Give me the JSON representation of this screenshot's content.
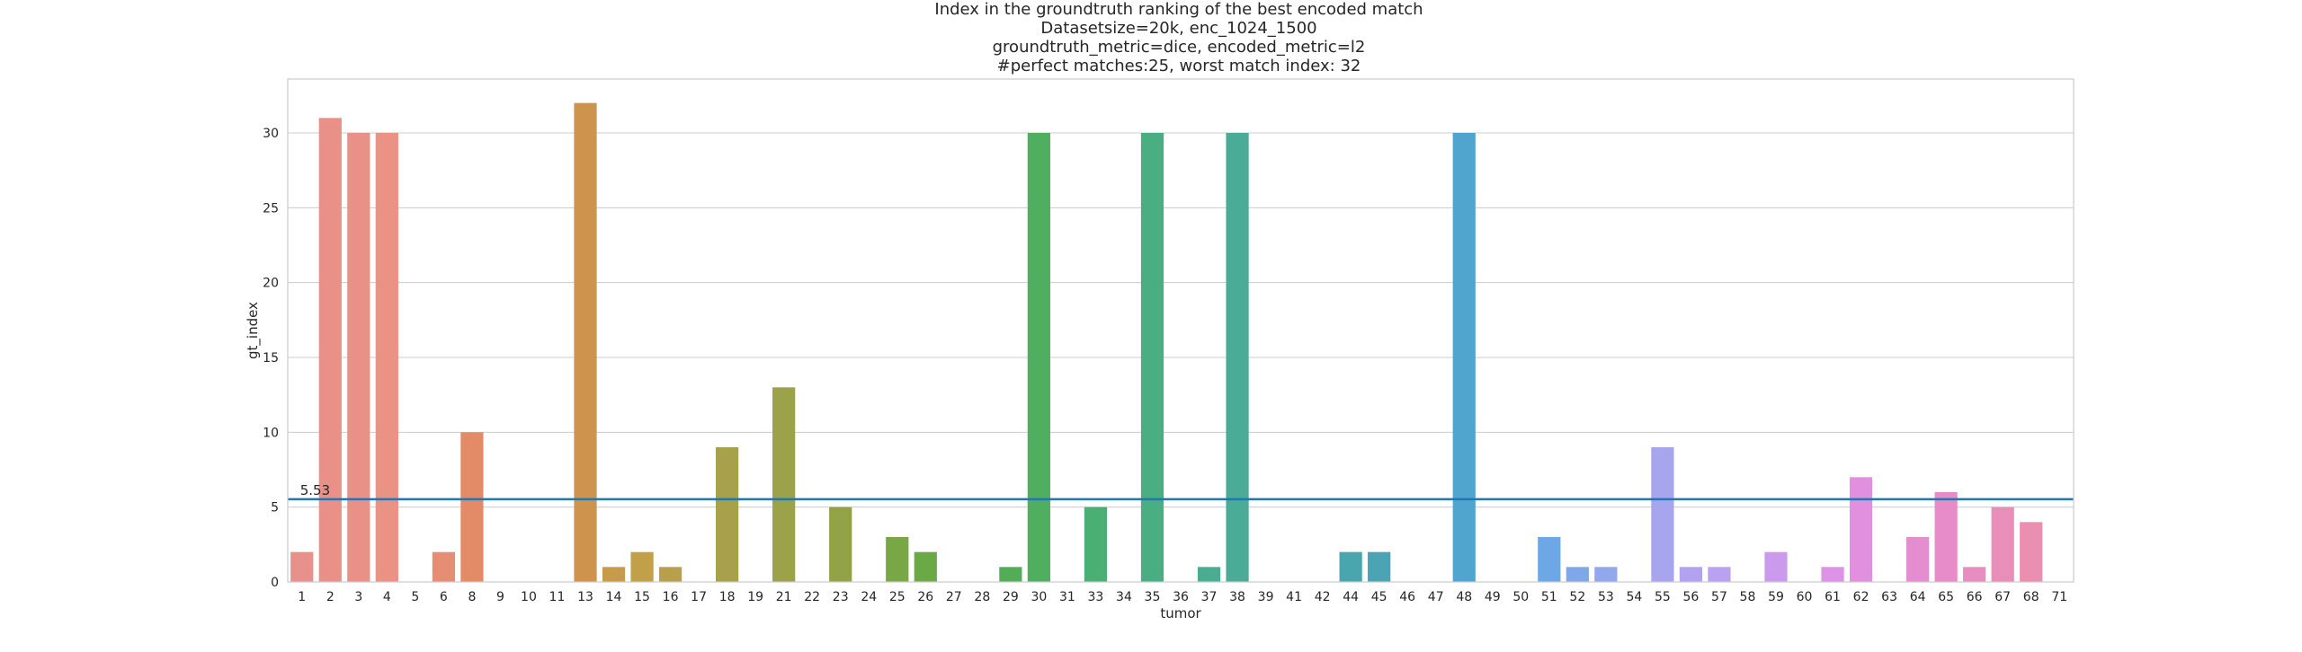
{
  "chart_data": {
    "type": "bar",
    "title_lines": [
      "Index in the groundtruth ranking of the best encoded match",
      "Datasetsize=20k, enc_1024_1500",
      "groundtruth_metric=dice, encoded_metric=l2",
      "#perfect matches:25, worst match index: 32"
    ],
    "xlabel": "tumor",
    "ylabel": "gt_index",
    "ylim": [
      0,
      33.6
    ],
    "yticks": [
      0,
      5,
      10,
      15,
      20,
      25,
      30
    ],
    "grid": "horizontal",
    "categories": [
      "1",
      "2",
      "3",
      "4",
      "5",
      "6",
      "8",
      "9",
      "10",
      "11",
      "13",
      "14",
      "15",
      "16",
      "17",
      "18",
      "19",
      "21",
      "22",
      "23",
      "24",
      "25",
      "26",
      "27",
      "28",
      "29",
      "30",
      "31",
      "33",
      "34",
      "35",
      "36",
      "37",
      "38",
      "39",
      "41",
      "42",
      "44",
      "45",
      "46",
      "47",
      "48",
      "49",
      "50",
      "51",
      "52",
      "53",
      "54",
      "55",
      "56",
      "57",
      "58",
      "59",
      "60",
      "61",
      "62",
      "63",
      "64",
      "65",
      "66",
      "67",
      "68",
      "71"
    ],
    "values": [
      2,
      31,
      30,
      30,
      0,
      2,
      10,
      0,
      0,
      0,
      32,
      1,
      2,
      1,
      0,
      9,
      0,
      13,
      0,
      5,
      0,
      3,
      2,
      0,
      0,
      1,
      30,
      0,
      5,
      0,
      30,
      0,
      1,
      30,
      0,
      0,
      0,
      2,
      2,
      0,
      0,
      30,
      0,
      0,
      3,
      1,
      1,
      0,
      9,
      1,
      1,
      0,
      2,
      0,
      1,
      7,
      0,
      3,
      6,
      1,
      5,
      4,
      0
    ],
    "mean_line": {
      "value": 5.53,
      "label": "5.53",
      "color": "#1f77b4"
    },
    "palette": [
      "#e8908c",
      "#ea9280",
      "#dd8452",
      "#c4a049",
      "#a3a14b",
      "#8fa345",
      "#5aac48",
      "#4aaf6a",
      "#4aae8c",
      "#4aa9a2",
      "#4aa3b8",
      "#55a7e0",
      "#9aa8ee",
      "#bea1f0",
      "#df91e6",
      "#e78cc8",
      "#eb90a8"
    ]
  }
}
